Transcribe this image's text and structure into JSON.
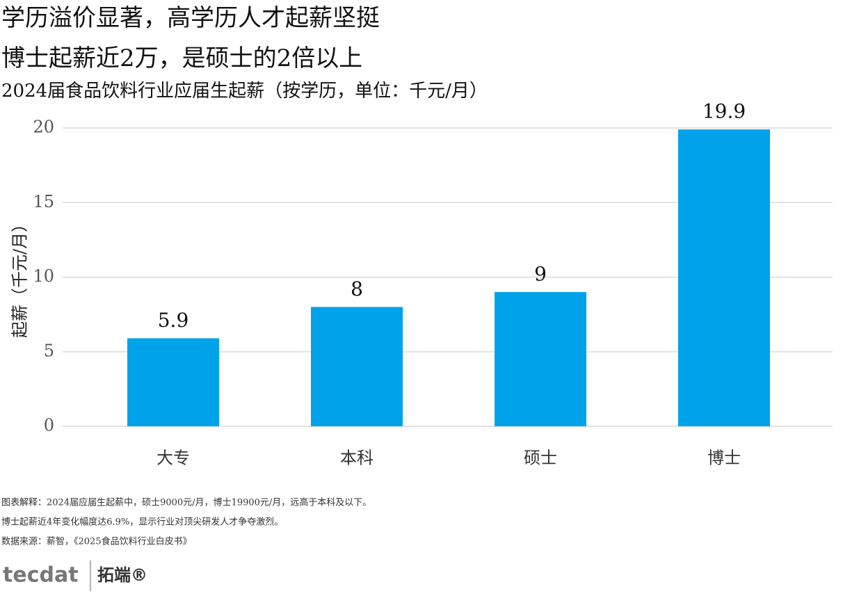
{
  "chart_data": {
    "type": "bar",
    "title": "学历溢价显著，高学历人才起薪坚挺",
    "title2": "博士起薪近2万，是硕士的2倍以上",
    "subtitle": "2024届食品饮料行业应届生起薪（按学历，单位：千元/月）",
    "y_label": "起薪（千元/月）",
    "categories": [
      "大专",
      "本科",
      "硕士",
      "博士"
    ],
    "values": [
      5.9,
      8,
      9,
      19.9
    ],
    "color": "#00a3ea",
    "ylim": [
      0,
      20
    ],
    "yticks": [
      0,
      5,
      10,
      15,
      20
    ],
    "grid": true,
    "notes": [
      "图表解释：2024届应届生起薪中，硕士9000元/月，博士19900元/月，远高于本科及以下。",
      "博士起薪近4年变化幅度达6.9%，显示行业对顶尖研发人才争夺激烈。",
      "数据来源：薪智，《2025食品饮料行业白皮书》"
    ],
    "logo": {
      "brand": "tecdat",
      "name": "拓端®"
    }
  }
}
